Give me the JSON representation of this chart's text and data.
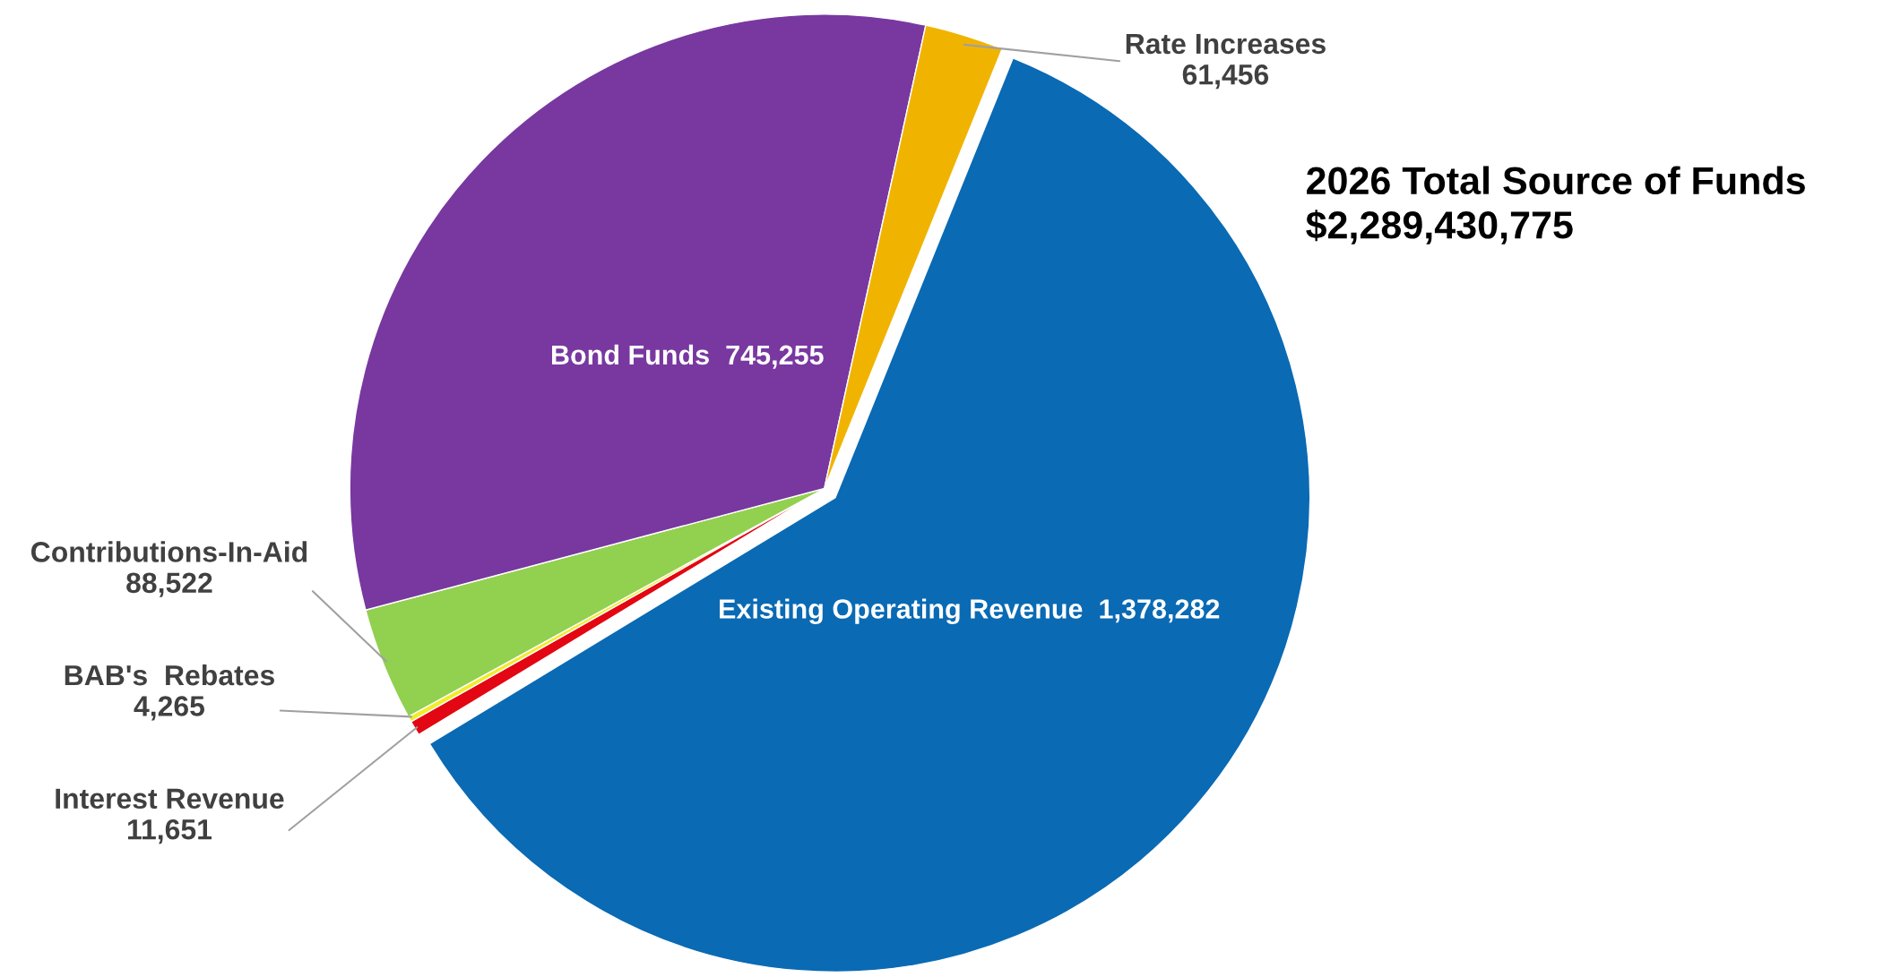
{
  "chart_data": {
    "type": "pie",
    "title": "2026 Total Source of Funds",
    "subtitle": "$2,289,430,775",
    "categories": [
      "Existing Operating Revenue",
      "Interest Revenue",
      "BAB's  Rebates",
      "Contributions-In-Aid",
      "Bond Funds",
      "Rate Increases"
    ],
    "values": [
      1378282,
      11651,
      4265,
      88522,
      745255,
      61456
    ],
    "value_labels": [
      "1,378,282",
      "11,651",
      "4,265",
      "88,522",
      "745,255",
      "61,456"
    ],
    "colors": [
      "#0a6ab4",
      "#e30613",
      "#f2ec2a",
      "#92d050",
      "#7838a0",
      "#f0b400"
    ],
    "legend": false
  }
}
